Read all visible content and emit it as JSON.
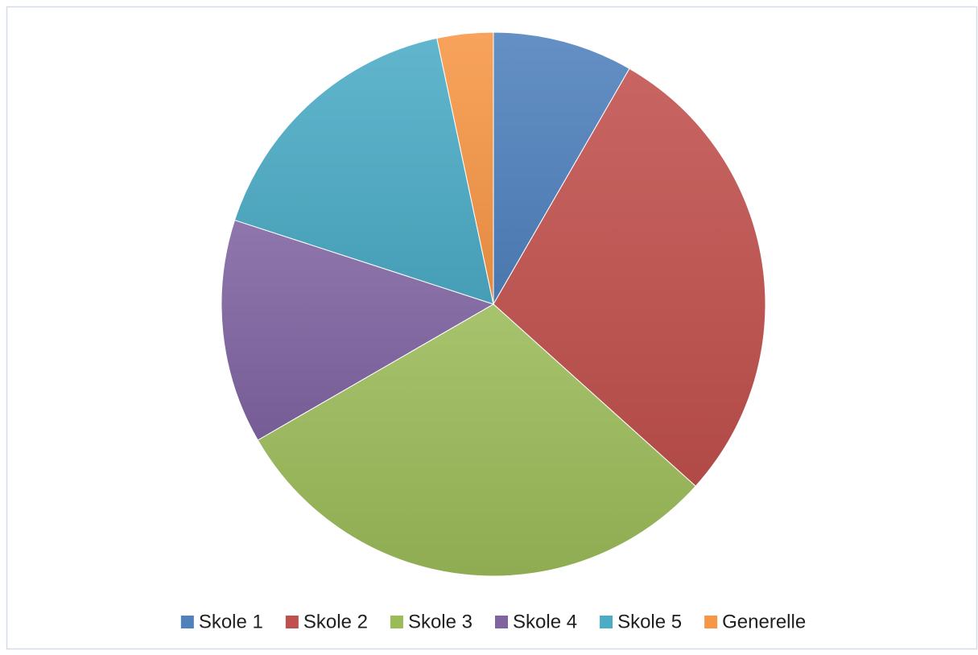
{
  "chart_data": {
    "type": "pie",
    "categories": [
      "Skole 1",
      "Skole 2",
      "Skole 3",
      "Skole 4",
      "Skole 5",
      "Generelle"
    ],
    "values": [
      5,
      17,
      18,
      8,
      10,
      2
    ],
    "colors": [
      "#4f81bd",
      "#c0504d",
      "#9bbb59",
      "#8064a2",
      "#4bacc6",
      "#f79646"
    ],
    "legend": "bottom"
  }
}
